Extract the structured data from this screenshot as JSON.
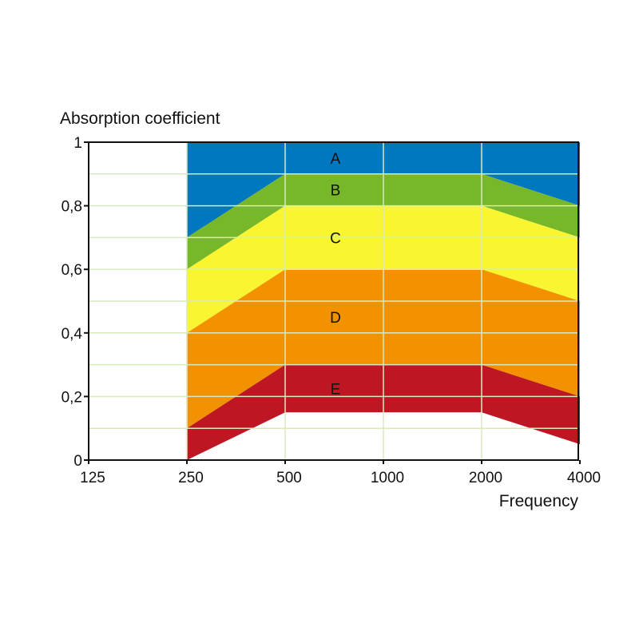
{
  "chart_data": {
    "type": "area",
    "ylabel": "Absorption coefficient",
    "xlabel": "Frequency",
    "x_categories": [
      "125",
      "250",
      "500",
      "1000",
      "2000",
      "4000"
    ],
    "y_ticks": [
      {
        "value": 0,
        "label": "0"
      },
      {
        "value": 0.2,
        "label": "0,2"
      },
      {
        "value": 0.4,
        "label": "0,4"
      },
      {
        "value": 0.6,
        "label": "0,6"
      },
      {
        "value": 0.8,
        "label": "0,8"
      },
      {
        "value": 1,
        "label": "1"
      }
    ],
    "ylim": [
      0,
      1
    ],
    "grid": true,
    "x_data_categories": [
      "250",
      "500",
      "1000",
      "2000",
      "4000"
    ],
    "bands": [
      {
        "name": "A",
        "color": "#0078BF",
        "lower": [
          0.7,
          0.9,
          0.9,
          0.9,
          0.8
        ],
        "upper": [
          1,
          1,
          1,
          1,
          1
        ]
      },
      {
        "name": "B",
        "color": "#76B82A",
        "lower": [
          0.6,
          0.8,
          0.8,
          0.8,
          0.7
        ],
        "upper": [
          0.7,
          0.9,
          0.9,
          0.9,
          0.8
        ]
      },
      {
        "name": "C",
        "color": "#FAF531",
        "lower": [
          0.4,
          0.6,
          0.6,
          0.6,
          0.5
        ],
        "upper": [
          0.6,
          0.8,
          0.8,
          0.8,
          0.7
        ]
      },
      {
        "name": "D",
        "color": "#F39200",
        "lower": [
          0.1,
          0.3,
          0.3,
          0.3,
          0.2
        ],
        "upper": [
          0.4,
          0.6,
          0.6,
          0.6,
          0.5
        ]
      },
      {
        "name": "E",
        "color": "#BE1622",
        "lower": [
          0,
          0.15,
          0.15,
          0.15,
          0.05
        ],
        "upper": [
          0.1,
          0.3,
          0.3,
          0.3,
          0.2
        ]
      }
    ],
    "band_label_x_category": "1000",
    "gridline_color": "#D9E8C0",
    "axis_color": "#111111"
  }
}
